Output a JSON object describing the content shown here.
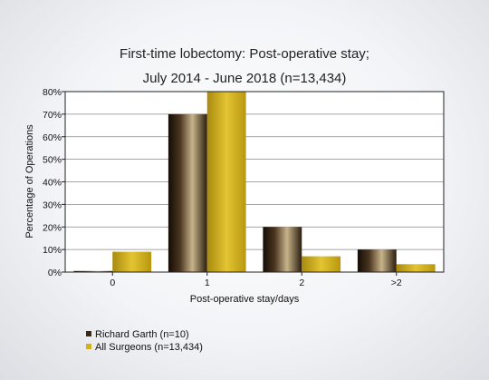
{
  "chart_data": {
    "type": "bar",
    "title": [
      "First-time lobectomy: Post-operative stay;",
      "July 2014 - June 2018 (n=13,434)"
    ],
    "xlabel": "Post-operative stay/days",
    "ylabel": "Percentage of Operations",
    "categories": [
      "0",
      "1",
      "2",
      ">2"
    ],
    "ylim": [
      0,
      80
    ],
    "yticks": [
      "0%",
      "10%",
      "20%",
      "30%",
      "40%",
      "50%",
      "60%",
      "70%",
      "80%"
    ],
    "grid": true,
    "legend_position": "bottom-left",
    "series": [
      {
        "name": "Richard Garth (n=10)",
        "values": [
          0,
          70,
          20,
          10
        ],
        "color": "#3a2a18"
      },
      {
        "name": "All Surgeons (n=13,434)",
        "values": [
          9,
          80,
          7,
          3.5
        ],
        "color": "#d2b21c"
      }
    ]
  }
}
